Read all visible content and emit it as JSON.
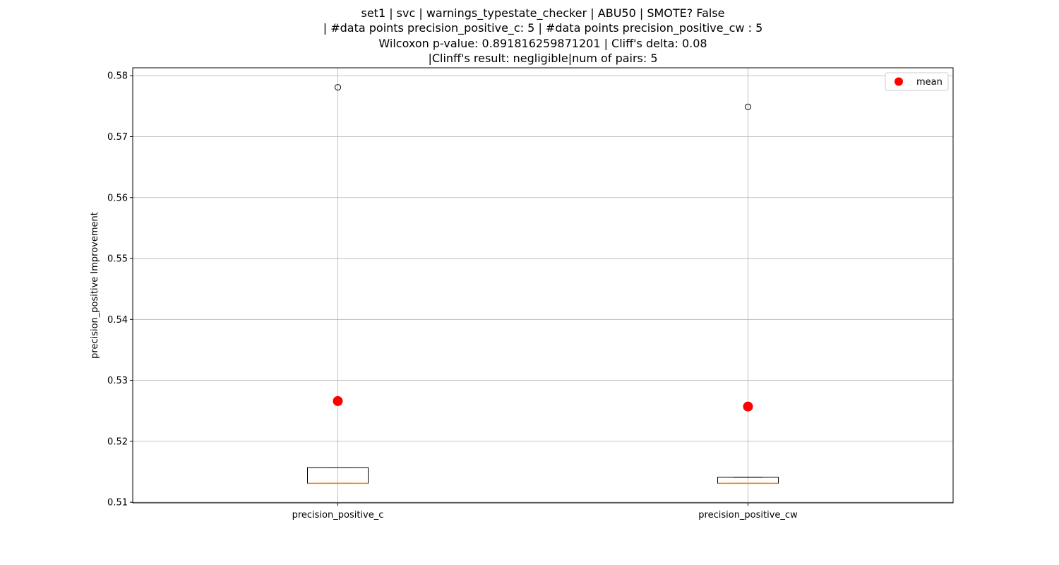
{
  "chart_data": {
    "type": "box",
    "title_lines": [
      "set1 | svc | warnings_typestate_checker | ABU50 | SMOTE? False",
      "| #data points precision_positive_c: 5 | #data points precision_positive_cw : 5",
      "Wilcoxon p-value: 0.891816259871201 | Cliff's delta: 0.08",
      "|Clinff's result: negligible|num of pairs: 5"
    ],
    "xlabel": "",
    "ylabel": "precision_positive Improvement",
    "ylim": [
      0.5099,
      0.5813
    ],
    "yticks": [
      0.51,
      0.52,
      0.53,
      0.54,
      0.55,
      0.56,
      0.57,
      0.58
    ],
    "ytick_labels": [
      "0.51",
      "0.52",
      "0.53",
      "0.54",
      "0.55",
      "0.56",
      "0.57",
      "0.58"
    ],
    "grid": true,
    "legend": {
      "placement": "top-right",
      "entries": [
        {
          "label": "mean",
          "color": "#ff0000"
        }
      ]
    },
    "categories": [
      "precision_positive_c",
      "precision_positive_cw"
    ],
    "boxes": [
      {
        "name": "precision_positive_c",
        "whisker_low": 0.5131,
        "q1": 0.5131,
        "median": 0.5131,
        "q3": 0.5157,
        "whisker_high": 0.5157,
        "outliers": [
          0.5781
        ],
        "mean": 0.5266
      },
      {
        "name": "precision_positive_cw",
        "whisker_low": 0.5131,
        "q1": 0.5131,
        "median": 0.5131,
        "q3": 0.5141,
        "whisker_high": 0.5141,
        "outliers": [
          0.5749
        ],
        "mean": 0.5257
      }
    ],
    "colors": {
      "median": "#ff7f0e",
      "mean": "#ff0000",
      "grid": "#b0b0b0",
      "box": "#000000"
    }
  }
}
